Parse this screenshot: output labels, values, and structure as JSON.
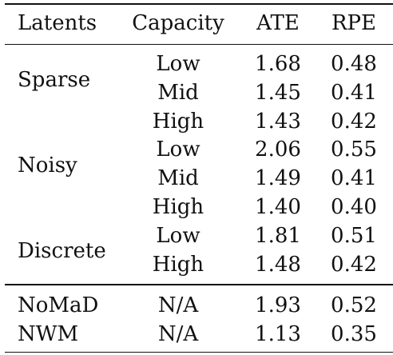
{
  "header": {
    "latents": "Latents",
    "capacity": "Capacity",
    "ate": "ATE",
    "rpe": "RPE"
  },
  "groups": [
    {
      "latents": "Sparse"
    },
    {
      "latents": "Noisy"
    },
    {
      "latents": "Discrete"
    }
  ],
  "rows": [
    {
      "capacity": "Low",
      "ate": "1.68",
      "rpe": "0.48"
    },
    {
      "capacity": "Mid",
      "ate": "1.45",
      "rpe": "0.41"
    },
    {
      "capacity": "High",
      "ate": "1.43",
      "rpe": "0.42"
    },
    {
      "capacity": "Low",
      "ate": "2.06",
      "rpe": "0.55"
    },
    {
      "capacity": "Mid",
      "ate": "1.49",
      "rpe": "0.41"
    },
    {
      "capacity": "High",
      "ate": "1.40",
      "rpe": "0.40"
    },
    {
      "capacity": "Low",
      "ate": "1.81",
      "rpe": "0.51"
    },
    {
      "capacity": "High",
      "ate": "1.48",
      "rpe": "0.42"
    }
  ],
  "baselines": [
    {
      "latents": "NoMaD",
      "capacity": "N/A",
      "ate": "1.93",
      "rpe": "0.52"
    },
    {
      "latents": "NWM",
      "capacity": "N/A",
      "ate": "1.13",
      "rpe": "0.35"
    }
  ]
}
